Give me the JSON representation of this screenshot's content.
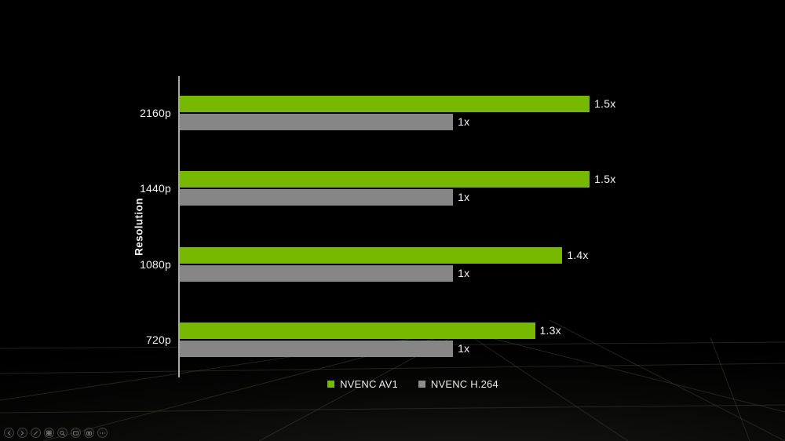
{
  "chart_data": {
    "type": "bar",
    "orientation": "horizontal",
    "title": "",
    "xlabel": "",
    "ylabel": "Resolution",
    "categories": [
      "2160p",
      "1440p",
      "1080p",
      "720p"
    ],
    "series": [
      {
        "name": "NVENC AV1",
        "color": "#76b900",
        "values": [
          1.5,
          1.5,
          1.4,
          1.3
        ],
        "labels": [
          "1.5x",
          "1.5x",
          "1.4x",
          "1.3x"
        ]
      },
      {
        "name": "NVENC H.264",
        "color": "#868686",
        "values": [
          1.0,
          1.0,
          1.0,
          1.0
        ],
        "labels": [
          "1x",
          "1x",
          "1x",
          "1x"
        ]
      }
    ],
    "xlim": [
      0,
      2.1
    ],
    "grid": false,
    "legend_position": "bottom",
    "legend_swatch_colors": [
      "#76b900",
      "#8f8f8f"
    ]
  },
  "colors": {
    "background": "#000000",
    "axis": "#c6c6c6",
    "text": "#f2f2f2",
    "floor_line": "#4a4940"
  },
  "slideshow_toolbar": {
    "buttons": [
      "previous-slide",
      "next-slide",
      "pen",
      "see-all-slides",
      "zoom-magnifier",
      "captions",
      "camera",
      "more-options"
    ]
  }
}
